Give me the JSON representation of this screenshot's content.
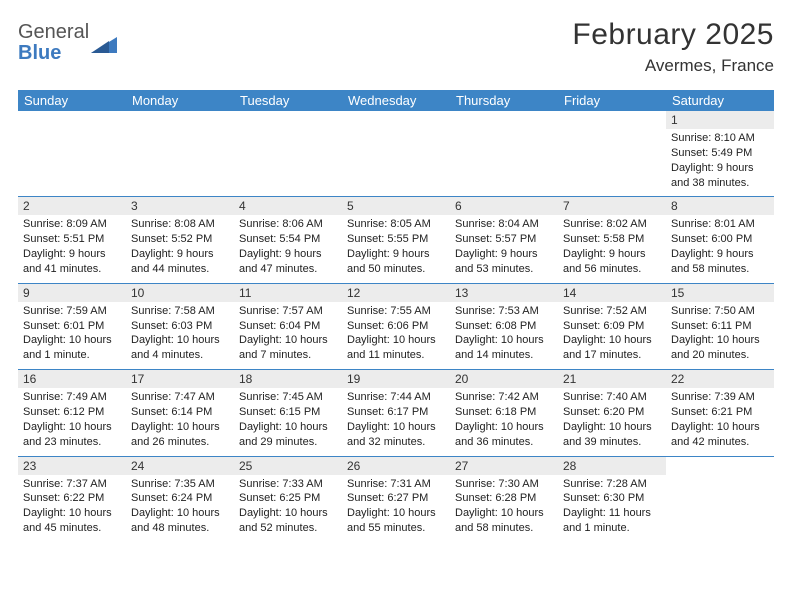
{
  "logo": {
    "line1": "General",
    "line2": "Blue"
  },
  "title": "February 2025",
  "location": "Avermes, France",
  "colors": {
    "header_blue": "#3d85c6",
    "logo_blue": "#3d7abf",
    "day_num_bg": "#ececec",
    "rule": "#3d85c6",
    "text": "#333333"
  },
  "dow": [
    "Sunday",
    "Monday",
    "Tuesday",
    "Wednesday",
    "Thursday",
    "Friday",
    "Saturday"
  ],
  "weeks": [
    [
      null,
      null,
      null,
      null,
      null,
      null,
      {
        "n": "1",
        "sr": "Sunrise: 8:10 AM",
        "ss": "Sunset: 5:49 PM",
        "dl": "Daylight: 9 hours and 38 minutes."
      }
    ],
    [
      {
        "n": "2",
        "sr": "Sunrise: 8:09 AM",
        "ss": "Sunset: 5:51 PM",
        "dl": "Daylight: 9 hours and 41 minutes."
      },
      {
        "n": "3",
        "sr": "Sunrise: 8:08 AM",
        "ss": "Sunset: 5:52 PM",
        "dl": "Daylight: 9 hours and 44 minutes."
      },
      {
        "n": "4",
        "sr": "Sunrise: 8:06 AM",
        "ss": "Sunset: 5:54 PM",
        "dl": "Daylight: 9 hours and 47 minutes."
      },
      {
        "n": "5",
        "sr": "Sunrise: 8:05 AM",
        "ss": "Sunset: 5:55 PM",
        "dl": "Daylight: 9 hours and 50 minutes."
      },
      {
        "n": "6",
        "sr": "Sunrise: 8:04 AM",
        "ss": "Sunset: 5:57 PM",
        "dl": "Daylight: 9 hours and 53 minutes."
      },
      {
        "n": "7",
        "sr": "Sunrise: 8:02 AM",
        "ss": "Sunset: 5:58 PM",
        "dl": "Daylight: 9 hours and 56 minutes."
      },
      {
        "n": "8",
        "sr": "Sunrise: 8:01 AM",
        "ss": "Sunset: 6:00 PM",
        "dl": "Daylight: 9 hours and 58 minutes."
      }
    ],
    [
      {
        "n": "9",
        "sr": "Sunrise: 7:59 AM",
        "ss": "Sunset: 6:01 PM",
        "dl": "Daylight: 10 hours and 1 minute."
      },
      {
        "n": "10",
        "sr": "Sunrise: 7:58 AM",
        "ss": "Sunset: 6:03 PM",
        "dl": "Daylight: 10 hours and 4 minutes."
      },
      {
        "n": "11",
        "sr": "Sunrise: 7:57 AM",
        "ss": "Sunset: 6:04 PM",
        "dl": "Daylight: 10 hours and 7 minutes."
      },
      {
        "n": "12",
        "sr": "Sunrise: 7:55 AM",
        "ss": "Sunset: 6:06 PM",
        "dl": "Daylight: 10 hours and 11 minutes."
      },
      {
        "n": "13",
        "sr": "Sunrise: 7:53 AM",
        "ss": "Sunset: 6:08 PM",
        "dl": "Daylight: 10 hours and 14 minutes."
      },
      {
        "n": "14",
        "sr": "Sunrise: 7:52 AM",
        "ss": "Sunset: 6:09 PM",
        "dl": "Daylight: 10 hours and 17 minutes."
      },
      {
        "n": "15",
        "sr": "Sunrise: 7:50 AM",
        "ss": "Sunset: 6:11 PM",
        "dl": "Daylight: 10 hours and 20 minutes."
      }
    ],
    [
      {
        "n": "16",
        "sr": "Sunrise: 7:49 AM",
        "ss": "Sunset: 6:12 PM",
        "dl": "Daylight: 10 hours and 23 minutes."
      },
      {
        "n": "17",
        "sr": "Sunrise: 7:47 AM",
        "ss": "Sunset: 6:14 PM",
        "dl": "Daylight: 10 hours and 26 minutes."
      },
      {
        "n": "18",
        "sr": "Sunrise: 7:45 AM",
        "ss": "Sunset: 6:15 PM",
        "dl": "Daylight: 10 hours and 29 minutes."
      },
      {
        "n": "19",
        "sr": "Sunrise: 7:44 AM",
        "ss": "Sunset: 6:17 PM",
        "dl": "Daylight: 10 hours and 32 minutes."
      },
      {
        "n": "20",
        "sr": "Sunrise: 7:42 AM",
        "ss": "Sunset: 6:18 PM",
        "dl": "Daylight: 10 hours and 36 minutes."
      },
      {
        "n": "21",
        "sr": "Sunrise: 7:40 AM",
        "ss": "Sunset: 6:20 PM",
        "dl": "Daylight: 10 hours and 39 minutes."
      },
      {
        "n": "22",
        "sr": "Sunrise: 7:39 AM",
        "ss": "Sunset: 6:21 PM",
        "dl": "Daylight: 10 hours and 42 minutes."
      }
    ],
    [
      {
        "n": "23",
        "sr": "Sunrise: 7:37 AM",
        "ss": "Sunset: 6:22 PM",
        "dl": "Daylight: 10 hours and 45 minutes."
      },
      {
        "n": "24",
        "sr": "Sunrise: 7:35 AM",
        "ss": "Sunset: 6:24 PM",
        "dl": "Daylight: 10 hours and 48 minutes."
      },
      {
        "n": "25",
        "sr": "Sunrise: 7:33 AM",
        "ss": "Sunset: 6:25 PM",
        "dl": "Daylight: 10 hours and 52 minutes."
      },
      {
        "n": "26",
        "sr": "Sunrise: 7:31 AM",
        "ss": "Sunset: 6:27 PM",
        "dl": "Daylight: 10 hours and 55 minutes."
      },
      {
        "n": "27",
        "sr": "Sunrise: 7:30 AM",
        "ss": "Sunset: 6:28 PM",
        "dl": "Daylight: 10 hours and 58 minutes."
      },
      {
        "n": "28",
        "sr": "Sunrise: 7:28 AM",
        "ss": "Sunset: 6:30 PM",
        "dl": "Daylight: 11 hours and 1 minute."
      },
      null
    ]
  ]
}
